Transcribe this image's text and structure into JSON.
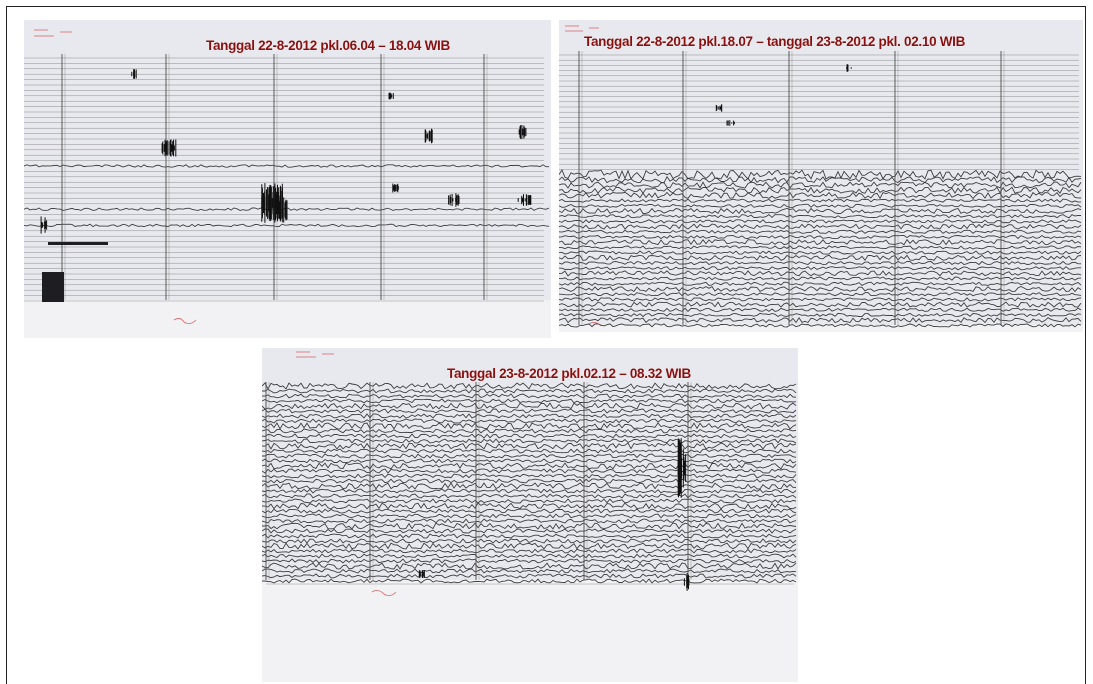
{
  "figure": {
    "panels": [
      {
        "caption": "Tanggal 22-8-2012 pkl.06.04 – 18.04 WIB",
        "activity": "low"
      },
      {
        "caption": "Tanggal 22-8-2012 pkl.18.07 – tanggal 23-8-2012 pkl. 02.10 WIB",
        "activity": "increasing"
      },
      {
        "caption": "Tanggal 23-8-2012 pkl.02.12 – 08.32 WIB",
        "activity": "high"
      }
    ],
    "colors": {
      "paper": "#e8e9ee",
      "paper_bottom": "#f2f2f4",
      "trace": "#2a2a2e",
      "caption": "#8a1010"
    }
  }
}
